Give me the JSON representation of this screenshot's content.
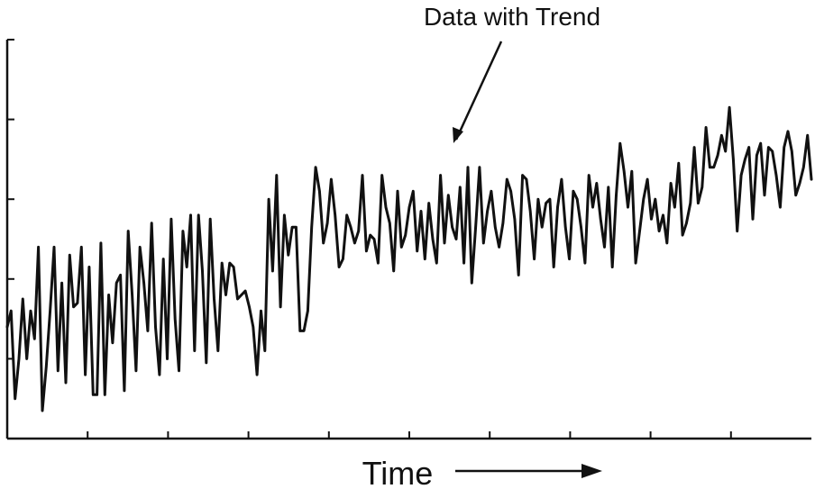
{
  "chart_data": {
    "type": "line",
    "title": "",
    "annotation": "Data with Trend",
    "xlabel": "Time",
    "ylabel": "",
    "xlim": [
      0,
      200
    ],
    "ylim": [
      0,
      10
    ],
    "x_ticks": [
      20,
      40,
      60,
      80,
      100,
      120,
      140,
      160,
      180
    ],
    "y_ticks": [
      2,
      4,
      6,
      8,
      10
    ],
    "tick_labels": "none",
    "grid": false,
    "legend": "none",
    "colors": {
      "line": "#111111",
      "axis": "#111111",
      "background": "#ffffff"
    },
    "series": [
      {
        "values": [
          2.8,
          3.2,
          1.0,
          2.0,
          3.5,
          2.0,
          3.2,
          2.5,
          4.8,
          0.7,
          1.8,
          3.2,
          4.8,
          1.7,
          3.9,
          1.4,
          4.6,
          3.3,
          3.4,
          4.8,
          1.6,
          4.3,
          1.1,
          1.1,
          4.9,
          1.1,
          3.6,
          2.4,
          3.9,
          4.1,
          1.2,
          5.2,
          3.6,
          1.7,
          4.8,
          3.9,
          2.7,
          5.4,
          2.8,
          1.6,
          4.5,
          2.0,
          5.5,
          3.0,
          1.7,
          5.2,
          4.3,
          5.6,
          2.2,
          5.6,
          4.2,
          1.9,
          5.5,
          3.5,
          2.2,
          4.4,
          3.6,
          4.4,
          4.3,
          3.5,
          3.6,
          3.7,
          3.3,
          2.8,
          1.6,
          3.2,
          2.2,
          6.0,
          4.2,
          6.6,
          3.3,
          5.6,
          4.6,
          5.3,
          5.3,
          2.7,
          2.7,
          3.2,
          5.3,
          6.8,
          6.2,
          4.9,
          5.4,
          6.5,
          5.6,
          4.3,
          4.5,
          5.6,
          5.3,
          4.9,
          5.2,
          6.6,
          4.7,
          5.1,
          5.0,
          4.4,
          6.6,
          5.8,
          5.4,
          4.2,
          6.2,
          4.8,
          5.1,
          5.8,
          6.2,
          4.7,
          5.7,
          4.5,
          5.9,
          5.0,
          4.4,
          6.6,
          4.9,
          6.1,
          5.3,
          5.0,
          6.3,
          4.4,
          6.8,
          3.9,
          5.3,
          6.8,
          4.9,
          5.7,
          6.2,
          5.3,
          4.8,
          5.4,
          6.5,
          6.2,
          5.5,
          4.1,
          6.6,
          6.5,
          5.7,
          4.5,
          6.0,
          5.3,
          5.9,
          6.0,
          4.3,
          5.8,
          6.5,
          5.3,
          4.5,
          6.2,
          6.0,
          5.3,
          4.4,
          6.6,
          5.8,
          6.4,
          5.5,
          4.8,
          6.3,
          4.3,
          6.1,
          7.4,
          6.7,
          5.8,
          6.7,
          4.4,
          5.2,
          6.0,
          6.5,
          5.5,
          6.0,
          5.2,
          5.6,
          4.9,
          6.4,
          5.8,
          6.9,
          5.1,
          5.4,
          5.9,
          7.3,
          5.9,
          6.3,
          7.8,
          6.8,
          6.8,
          7.1,
          7.6,
          7.2,
          8.3,
          7.0,
          5.2,
          6.6,
          7.0,
          7.3,
          5.5,
          7.1,
          7.4,
          6.1,
          7.3,
          7.2,
          6.6,
          5.8,
          7.3,
          7.7,
          7.2,
          6.1,
          6.4,
          6.8,
          7.6,
          6.5
        ]
      }
    ]
  }
}
